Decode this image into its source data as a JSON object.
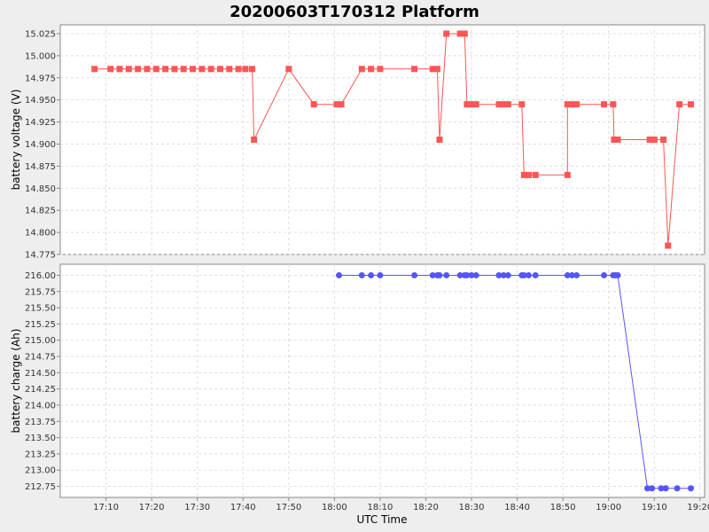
{
  "chart_data": {
    "type": "line",
    "title": "20200603T170312 Platform",
    "xlabel": "UTC Time",
    "x_ticks": [
      "17:10",
      "17:20",
      "17:30",
      "17:40",
      "17:50",
      "18:00",
      "18:10",
      "18:20",
      "18:30",
      "18:40",
      "18:50",
      "19:00",
      "19:10",
      "19:20"
    ],
    "x_range_minutes": [
      1020,
      1161
    ],
    "grid": true,
    "panels": [
      {
        "ylabel": "battery voltage (V)",
        "ylim": [
          14.775,
          15.035
        ],
        "y_ticks": [
          "14.775",
          "14.800",
          "14.825",
          "14.850",
          "14.875",
          "14.900",
          "14.925",
          "14.950",
          "14.975",
          "15.000",
          "15.025"
        ],
        "series": [
          {
            "color": "#ff5555",
            "marker": "square",
            "points": [
              [
                1027.5,
                14.985
              ],
              [
                1031,
                14.985
              ],
              [
                1033,
                14.985
              ],
              [
                1035,
                14.985
              ],
              [
                1037,
                14.985
              ],
              [
                1039,
                14.985
              ],
              [
                1041,
                14.985
              ],
              [
                1043,
                14.985
              ],
              [
                1045,
                14.985
              ],
              [
                1047,
                14.985
              ],
              [
                1049,
                14.985
              ],
              [
                1051,
                14.985
              ],
              [
                1053,
                14.985
              ],
              [
                1055,
                14.985
              ],
              [
                1057,
                14.985
              ],
              [
                1059,
                14.985
              ],
              [
                1060.5,
                14.985
              ],
              [
                1062,
                14.985
              ],
              [
                1062.4,
                14.905
              ],
              [
                1070,
                14.985
              ],
              [
                1075.5,
                14.945
              ],
              [
                1080.5,
                14.945
              ],
              [
                1081.5,
                14.945
              ],
              [
                1086,
                14.985
              ],
              [
                1088,
                14.985
              ],
              [
                1090,
                14.985
              ],
              [
                1097.5,
                14.985
              ],
              [
                1101.5,
                14.985
              ],
              [
                1102.5,
                14.985
              ],
              [
                1103,
                14.905
              ],
              [
                1104.5,
                15.025
              ],
              [
                1107.5,
                15.025
              ],
              [
                1108.5,
                15.025
              ],
              [
                1109,
                14.945
              ],
              [
                1110,
                14.945
              ],
              [
                1111,
                14.945
              ],
              [
                1116,
                14.945
              ],
              [
                1117,
                14.945
              ],
              [
                1118,
                14.945
              ],
              [
                1121,
                14.945
              ],
              [
                1121.5,
                14.865
              ],
              [
                1122.5,
                14.865
              ],
              [
                1124,
                14.865
              ],
              [
                1131,
                14.865
              ],
              [
                1131,
                14.945
              ],
              [
                1132,
                14.945
              ],
              [
                1133,
                14.945
              ],
              [
                1139,
                14.945
              ],
              [
                1141,
                14.945
              ],
              [
                1141.2,
                14.905
              ],
              [
                1142,
                14.905
              ],
              [
                1149,
                14.905
              ],
              [
                1150,
                14.905
              ],
              [
                1152,
                14.905
              ],
              [
                1153,
                14.785
              ],
              [
                1155.5,
                14.945
              ],
              [
                1158,
                14.945
              ]
            ]
          }
        ]
      },
      {
        "ylabel": "battery charge (Ah)",
        "ylim": [
          212.58,
          216.17
        ],
        "y_ticks": [
          "212.75",
          "213.00",
          "213.25",
          "213.50",
          "213.75",
          "214.00",
          "214.25",
          "214.50",
          "214.75",
          "215.00",
          "215.25",
          "215.50",
          "215.75",
          "216.00"
        ],
        "series": [
          {
            "color": "#5555ff",
            "marker": "circle",
            "points": [
              [
                1081,
                216
              ],
              [
                1086,
                216
              ],
              [
                1088,
                216
              ],
              [
                1090,
                216
              ],
              [
                1097.5,
                216
              ],
              [
                1101.5,
                216
              ],
              [
                1102.5,
                216
              ],
              [
                1103,
                216
              ],
              [
                1104.5,
                216
              ],
              [
                1107.5,
                216
              ],
              [
                1108.5,
                216
              ],
              [
                1109,
                216
              ],
              [
                1110,
                216
              ],
              [
                1111,
                216
              ],
              [
                1116,
                216
              ],
              [
                1117,
                216
              ],
              [
                1118,
                216
              ],
              [
                1121,
                216
              ],
              [
                1121.5,
                216
              ],
              [
                1122.5,
                216
              ],
              [
                1124,
                216
              ],
              [
                1131,
                216
              ],
              [
                1132,
                216
              ],
              [
                1133,
                216
              ],
              [
                1139,
                216
              ],
              [
                1141,
                216
              ],
              [
                1141.5,
                216
              ],
              [
                1142,
                216
              ],
              [
                1148.5,
                212.72
              ],
              [
                1149.5,
                212.72
              ],
              [
                1151.5,
                212.72
              ],
              [
                1152.5,
                212.72
              ],
              [
                1155,
                212.72
              ],
              [
                1158,
                212.72
              ]
            ]
          }
        ]
      }
    ]
  }
}
